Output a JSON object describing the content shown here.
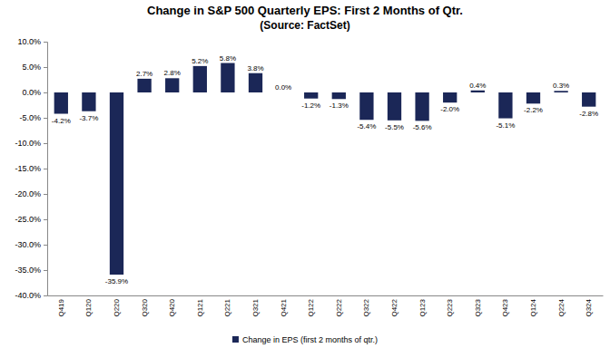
{
  "chart_data": {
    "type": "bar",
    "title": "Change in S&P 500 Quarterly EPS: First 2 Months of Qtr.",
    "subtitle": "(Source: FactSet)",
    "categories": [
      "Q419",
      "Q120",
      "Q220",
      "Q320",
      "Q420",
      "Q121",
      "Q221",
      "Q321",
      "Q421",
      "Q122",
      "Q222",
      "Q322",
      "Q422",
      "Q123",
      "Q223",
      "Q323",
      "Q423",
      "Q124",
      "Q224",
      "Q324"
    ],
    "series": [
      {
        "name": "Change in EPS (first 2 months of qtr.)",
        "color": "#1b2757",
        "values": [
          -4.2,
          -3.7,
          -35.9,
          2.7,
          2.8,
          5.2,
          5.8,
          3.8,
          0.0,
          -1.2,
          -1.3,
          -5.4,
          -5.5,
          -5.6,
          -2.0,
          0.4,
          -5.1,
          -2.2,
          0.3,
          -2.8
        ],
        "value_labels": [
          "-4.2%",
          "-3.7%",
          "-35.9%",
          "2.7%",
          "2.8%",
          "5.2%",
          "5.8%",
          "3.8%",
          "0.0%",
          "-1.2%",
          "-1.3%",
          "-5.4%",
          "-5.5%",
          "-5.6%",
          "-2.0%",
          "0.4%",
          "-5.1%",
          "-2.2%",
          "0.3%",
          "-2.8%"
        ]
      }
    ],
    "ylim": [
      -40,
      10
    ],
    "yticks": [
      {
        "value": -40,
        "label": "-40.0%"
      },
      {
        "value": -35,
        "label": "-35.0%"
      },
      {
        "value": -30,
        "label": "-30.0%"
      },
      {
        "value": -25,
        "label": "-25.0%"
      },
      {
        "value": -20,
        "label": "-20.0%"
      },
      {
        "value": -15,
        "label": "-15.0%"
      },
      {
        "value": -10,
        "label": "-10.0%"
      },
      {
        "value": -5,
        "label": "-5.0%"
      },
      {
        "value": 0,
        "label": "0.0%"
      },
      {
        "value": 5,
        "label": "5.0%"
      },
      {
        "value": 10,
        "label": "10.0%"
      }
    ],
    "grid": false,
    "legend": "bottom",
    "data_labels": true
  }
}
